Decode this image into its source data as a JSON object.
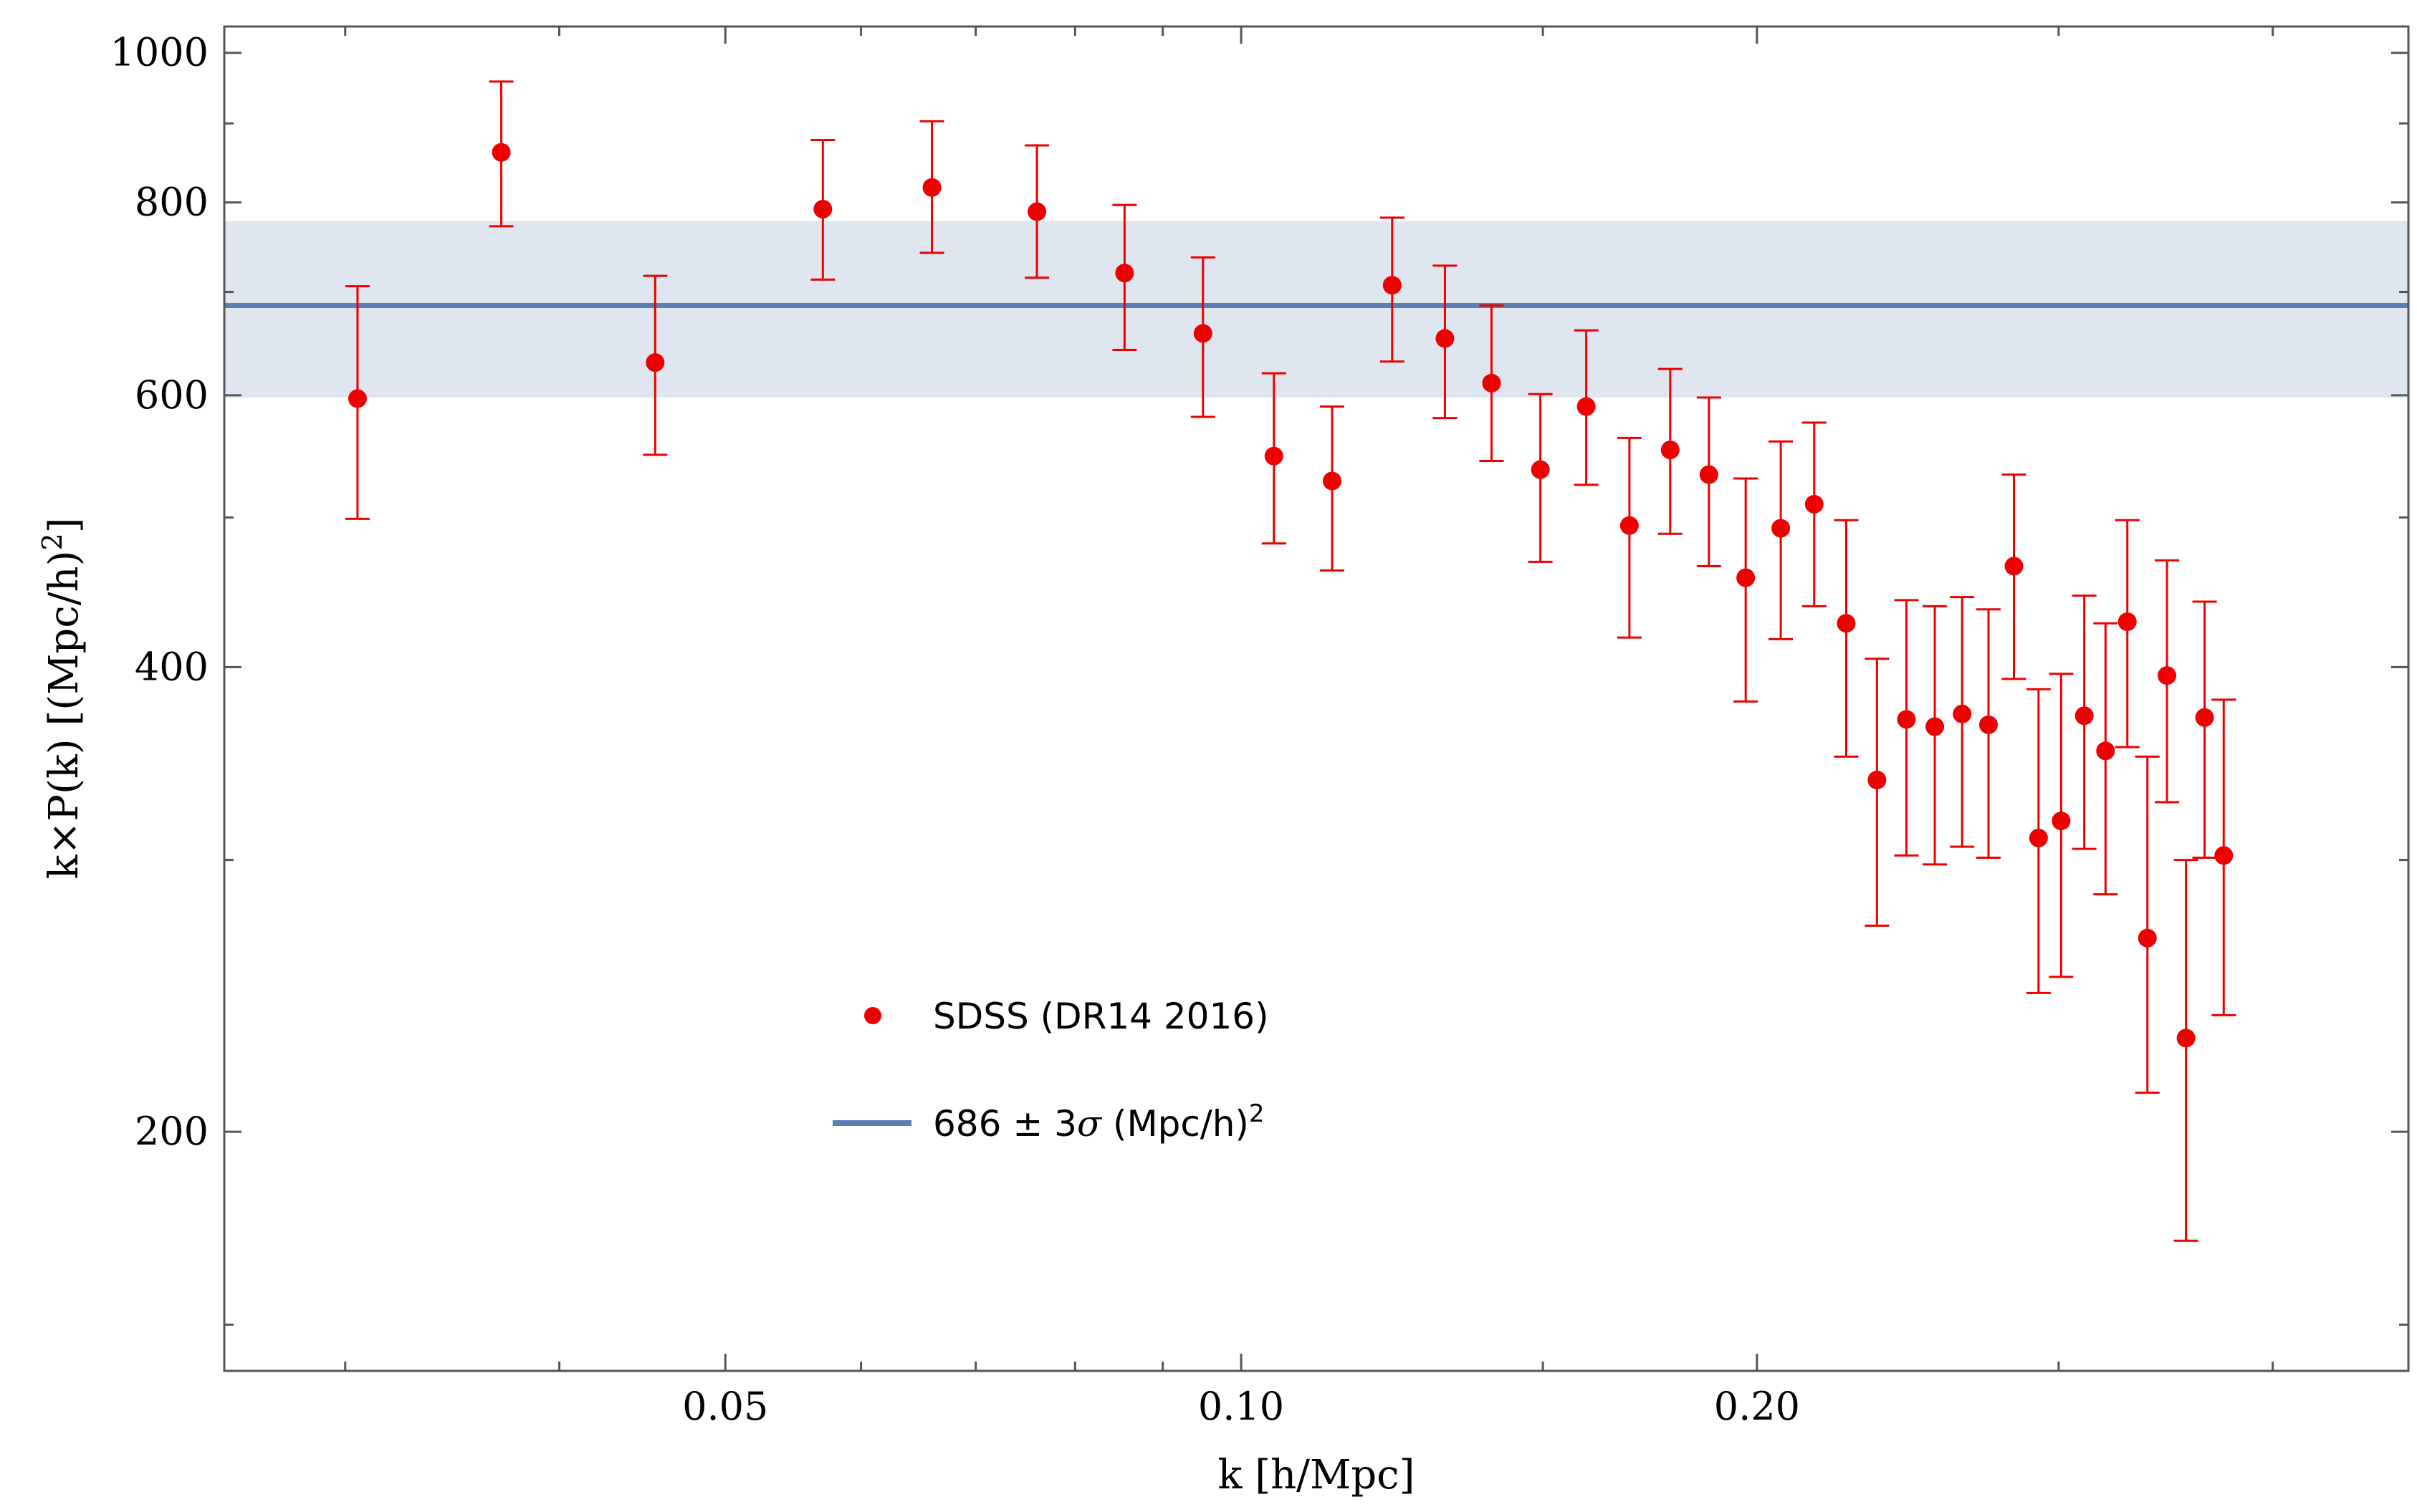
{
  "chart_data": {
    "type": "scatter",
    "title": "",
    "xlabel": "k [h/Mpc]",
    "ylabel_parts": {
      "main": "k×P(k) [(Mpc/h)",
      "superscript": "2",
      "close": "]"
    },
    "x_scale": "log",
    "y_scale": "log",
    "xlim": [
      0.0255,
      0.48
    ],
    "ylim": [
      140,
      1040
    ],
    "x_ticks": [
      {
        "value": 0.05,
        "label": "0.05"
      },
      {
        "value": 0.1,
        "label": "0.10"
      },
      {
        "value": 0.2,
        "label": "0.20"
      }
    ],
    "x_minor_ticks": [
      0.03,
      0.04,
      0.06,
      0.07,
      0.08,
      0.09,
      0.15,
      0.3,
      0.4
    ],
    "y_ticks": [
      {
        "value": 200,
        "label": "200"
      },
      {
        "value": 400,
        "label": "400"
      },
      {
        "value": 600,
        "label": "600"
      },
      {
        "value": 800,
        "label": "800"
      },
      {
        "value": 1000,
        "label": "1000"
      }
    ],
    "y_minor_ticks": [
      150,
      300,
      500,
      700,
      900
    ],
    "band": {
      "center": 686,
      "low": 598,
      "high": 778,
      "color": "#5b7fb5",
      "fill_color": "#e0e6f0",
      "legend_prefix": "686 ± 3",
      "legend_sigma": "σ",
      "legend_unit": " (Mpc/h)",
      "legend_superscript": "2"
    },
    "series": [
      {
        "name": "SDSS (DR14 2016)",
        "color": "#ee0000",
        "points": [
          {
            "x": 0.0305,
            "y": 597,
            "lo": 499,
            "hi": 706
          },
          {
            "x": 0.037,
            "y": 862,
            "lo": 772,
            "hi": 958
          },
          {
            "x": 0.0455,
            "y": 630,
            "lo": 549,
            "hi": 717
          },
          {
            "x": 0.057,
            "y": 792,
            "lo": 713,
            "hi": 878
          },
          {
            "x": 0.066,
            "y": 818,
            "lo": 742,
            "hi": 903
          },
          {
            "x": 0.076,
            "y": 789,
            "lo": 715,
            "hi": 871
          },
          {
            "x": 0.0855,
            "y": 720,
            "lo": 642,
            "hi": 797
          },
          {
            "x": 0.095,
            "y": 658,
            "lo": 581,
            "hi": 737
          },
          {
            "x": 0.1045,
            "y": 548,
            "lo": 481,
            "hi": 620
          },
          {
            "x": 0.113,
            "y": 528,
            "lo": 462,
            "hi": 590
          },
          {
            "x": 0.1225,
            "y": 707,
            "lo": 631,
            "hi": 782
          },
          {
            "x": 0.1315,
            "y": 653,
            "lo": 580,
            "hi": 728
          },
          {
            "x": 0.14,
            "y": 611,
            "lo": 544,
            "hi": 686
          },
          {
            "x": 0.1495,
            "y": 537,
            "lo": 468,
            "hi": 601
          },
          {
            "x": 0.159,
            "y": 590,
            "lo": 525,
            "hi": 661
          },
          {
            "x": 0.1685,
            "y": 494,
            "lo": 418,
            "hi": 563
          },
          {
            "x": 0.178,
            "y": 553,
            "lo": 488,
            "hi": 624
          },
          {
            "x": 0.1875,
            "y": 533,
            "lo": 465,
            "hi": 598
          },
          {
            "x": 0.197,
            "y": 457,
            "lo": 380,
            "hi": 530
          },
          {
            "x": 0.2065,
            "y": 492,
            "lo": 417,
            "hi": 560
          },
          {
            "x": 0.216,
            "y": 510,
            "lo": 438,
            "hi": 576
          },
          {
            "x": 0.2255,
            "y": 427,
            "lo": 350,
            "hi": 498
          },
          {
            "x": 0.235,
            "y": 338,
            "lo": 272,
            "hi": 405
          },
          {
            "x": 0.2445,
            "y": 370,
            "lo": 302,
            "hi": 442
          },
          {
            "x": 0.254,
            "y": 366,
            "lo": 298,
            "hi": 438
          },
          {
            "x": 0.2635,
            "y": 373,
            "lo": 306,
            "hi": 444
          },
          {
            "x": 0.273,
            "y": 367,
            "lo": 301,
            "hi": 436
          },
          {
            "x": 0.2825,
            "y": 465,
            "lo": 393,
            "hi": 533
          },
          {
            "x": 0.292,
            "y": 310,
            "lo": 246,
            "hi": 387
          },
          {
            "x": 0.301,
            "y": 318,
            "lo": 252,
            "hi": 396
          },
          {
            "x": 0.3105,
            "y": 372,
            "lo": 305,
            "hi": 445
          },
          {
            "x": 0.3195,
            "y": 353,
            "lo": 285,
            "hi": 427
          },
          {
            "x": 0.329,
            "y": 428,
            "lo": 355,
            "hi": 498
          },
          {
            "x": 0.338,
            "y": 267,
            "lo": 212,
            "hi": 350
          },
          {
            "x": 0.347,
            "y": 395,
            "lo": 327,
            "hi": 469
          },
          {
            "x": 0.356,
            "y": 230,
            "lo": 170,
            "hi": 300
          },
          {
            "x": 0.365,
            "y": 371,
            "lo": 301,
            "hi": 441
          },
          {
            "x": 0.3745,
            "y": 302,
            "lo": 238,
            "hi": 381
          }
        ]
      }
    ],
    "legend_position": "center"
  }
}
